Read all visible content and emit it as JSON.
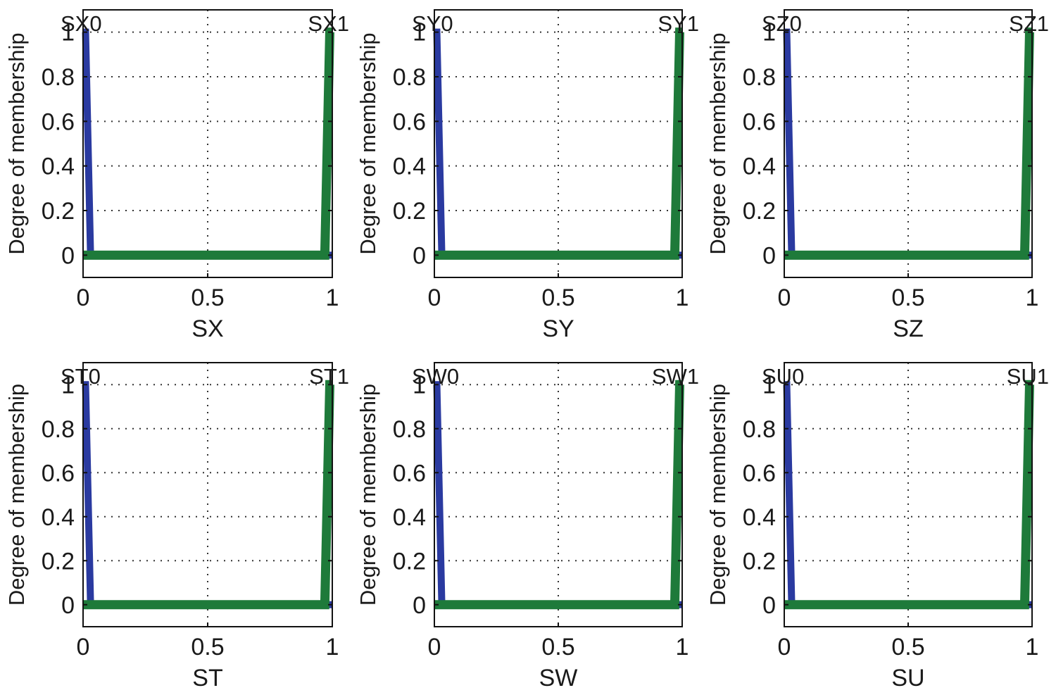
{
  "chart_data": [
    {
      "type": "line",
      "title": "",
      "xlabel": "SX",
      "ylabel": "Degree of membership",
      "xlim": [
        0,
        1
      ],
      "ylim": [
        -0.1,
        1.1
      ],
      "xticks": [
        "0",
        "0.5",
        "1"
      ],
      "yticks": [
        "0",
        "0.2",
        "0.4",
        "0.6",
        "0.8",
        "1"
      ],
      "grid": true,
      "series": [
        {
          "name": "SX0",
          "color": "#2a3aa0",
          "x": [
            0,
            0.01,
            0.02,
            0.03,
            1
          ],
          "y": [
            1,
            1,
            0.5,
            0,
            0
          ]
        },
        {
          "name": "SX1",
          "color": "#1e7a3a",
          "x": [
            0,
            0.97,
            0.98,
            0.99,
            1
          ],
          "y": [
            0,
            0,
            0.5,
            1,
            1
          ]
        }
      ]
    },
    {
      "type": "line",
      "title": "",
      "xlabel": "SY",
      "ylabel": "Degree of membership",
      "xlim": [
        0,
        1
      ],
      "ylim": [
        -0.1,
        1.1
      ],
      "xticks": [
        "0",
        "0.5",
        "1"
      ],
      "yticks": [
        "0",
        "0.2",
        "0.4",
        "0.6",
        "0.8",
        "1"
      ],
      "grid": true,
      "series": [
        {
          "name": "SY0",
          "color": "#2a3aa0",
          "x": [
            0,
            0.01,
            0.02,
            0.03,
            1
          ],
          "y": [
            1,
            1,
            0.5,
            0,
            0
          ]
        },
        {
          "name": "SY1",
          "color": "#1e7a3a",
          "x": [
            0,
            0.97,
            0.98,
            0.99,
            1
          ],
          "y": [
            0,
            0,
            0.5,
            1,
            1
          ]
        }
      ]
    },
    {
      "type": "line",
      "title": "",
      "xlabel": "SZ",
      "ylabel": "Degree of membership",
      "xlim": [
        0,
        1
      ],
      "ylim": [
        -0.1,
        1.1
      ],
      "xticks": [
        "0",
        "0.5",
        "1"
      ],
      "yticks": [
        "0",
        "0.2",
        "0.4",
        "0.6",
        "0.8",
        "1"
      ],
      "grid": true,
      "series": [
        {
          "name": "SZ0",
          "color": "#2a3aa0",
          "x": [
            0,
            0.01,
            0.02,
            0.03,
            1
          ],
          "y": [
            1,
            1,
            0.5,
            0,
            0
          ]
        },
        {
          "name": "SZ1",
          "color": "#1e7a3a",
          "x": [
            0,
            0.97,
            0.98,
            0.99,
            1
          ],
          "y": [
            0,
            0,
            0.5,
            1,
            1
          ]
        }
      ]
    },
    {
      "type": "line",
      "title": "",
      "xlabel": "ST",
      "ylabel": "Degree of membership",
      "xlim": [
        0,
        1
      ],
      "ylim": [
        -0.1,
        1.1
      ],
      "xticks": [
        "0",
        "0.5",
        "1"
      ],
      "yticks": [
        "0",
        "0.2",
        "0.4",
        "0.6",
        "0.8",
        "1"
      ],
      "grid": true,
      "series": [
        {
          "name": "ST0",
          "color": "#2a3aa0",
          "x": [
            0,
            0.01,
            0.02,
            0.03,
            1
          ],
          "y": [
            1,
            1,
            0.5,
            0,
            0
          ]
        },
        {
          "name": "ST1",
          "color": "#1e7a3a",
          "x": [
            0,
            0.97,
            0.98,
            0.99,
            1
          ],
          "y": [
            0,
            0,
            0.5,
            1,
            1
          ]
        }
      ]
    },
    {
      "type": "line",
      "title": "",
      "xlabel": "SW",
      "ylabel": "Degree of membership",
      "xlim": [
        0,
        1
      ],
      "ylim": [
        -0.1,
        1.1
      ],
      "xticks": [
        "0",
        "0.5",
        "1"
      ],
      "yticks": [
        "0",
        "0.2",
        "0.4",
        "0.6",
        "0.8",
        "1"
      ],
      "grid": true,
      "series": [
        {
          "name": "SW0",
          "color": "#2a3aa0",
          "x": [
            0,
            0.01,
            0.02,
            0.03,
            1
          ],
          "y": [
            1,
            1,
            0.5,
            0,
            0
          ]
        },
        {
          "name": "SW1",
          "color": "#1e7a3a",
          "x": [
            0,
            0.97,
            0.98,
            0.99,
            1
          ],
          "y": [
            0,
            0,
            0.5,
            1,
            1
          ]
        }
      ]
    },
    {
      "type": "line",
      "title": "",
      "xlabel": "SU",
      "ylabel": "Degree of membership",
      "xlim": [
        0,
        1
      ],
      "ylim": [
        -0.1,
        1.1
      ],
      "xticks": [
        "0",
        "0.5",
        "1"
      ],
      "yticks": [
        "0",
        "0.2",
        "0.4",
        "0.6",
        "0.8",
        "1"
      ],
      "grid": true,
      "series": [
        {
          "name": "SU0",
          "color": "#2a3aa0",
          "x": [
            0,
            0.01,
            0.02,
            0.03,
            1
          ],
          "y": [
            1,
            1,
            0.5,
            0,
            0
          ]
        },
        {
          "name": "SU1",
          "color": "#1e7a3a",
          "x": [
            0,
            0.97,
            0.98,
            0.99,
            1
          ],
          "y": [
            0,
            0,
            0.5,
            1,
            1
          ]
        }
      ]
    }
  ]
}
